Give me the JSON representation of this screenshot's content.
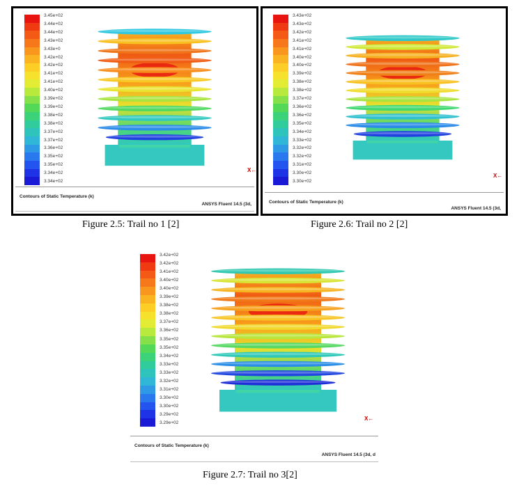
{
  "figures": [
    {
      "caption": "Figure 2.5: Trail no 1 [2]",
      "legend_ticks": [
        "3.45e+02",
        "3.44e+02",
        "3.44e+02",
        "3.43e+02",
        "3.43e+0",
        "3.42e+02",
        "3.42e+02",
        "3.41e+02",
        "3.41e+02",
        "3.40e+02",
        "3.39e+02",
        "3.39e+02",
        "3.38e+02",
        "3.38e+02",
        "3.37e+02",
        "3.37e+02",
        "3.36e+02",
        "3.35e+02",
        "3.35e+02",
        "3.34e+02",
        "3.34e+02"
      ],
      "footer_title": "Contours of Static Temperature (k)",
      "footer_version": "ANSYS Fluent 14.5 (3d,",
      "axis_label": "X"
    },
    {
      "caption": "Figure 2.6: Trail no 2 [2]",
      "legend_ticks": [
        "3.43e+02",
        "3.43e+02",
        "3.42e+02",
        "3.41e+02",
        "3.41e+02",
        "3.40e+02",
        "3.40e+02",
        "3.39e+02",
        "3.38e+02",
        "3.38e+02",
        "3.37e+02",
        "3.36e+02",
        "3.36e+02",
        "3.35e+02",
        "3.34e+02",
        "3.33e+02",
        "3.32e+02",
        "3.32e+02",
        "3.31e+02",
        "3.30e+02",
        "3.30e+02"
      ],
      "footer_title": "Contours of Static Temperature (k)",
      "footer_version": "ANSYS Fluent 14.5 (3d,",
      "axis_label": "X"
    },
    {
      "caption": "Figure 2.7: Trail no 3[2]",
      "legend_ticks": [
        "3.42e+02",
        "3.42e+02",
        "3.41e+02",
        "3.40e+02",
        "3.40e+02",
        "3.39e+02",
        "3.38e+02",
        "3.38e+02",
        "3.37e+02",
        "3.36e+02",
        "3.35e+02",
        "3.35e+02",
        "3.34e+02",
        "3.33e+02",
        "3.33e+02",
        "3.32e+02",
        "3.31e+02",
        "3.30e+02",
        "3.30e+02",
        "3.29e+02",
        "3.29e+02"
      ],
      "footer_title": "Contours of Static Temperature (k)",
      "footer_version": "ANSYS Fluent 14.5 (3d, d",
      "axis_label": "X"
    }
  ],
  "colorbar": [
    "#e8140f",
    "#f03a12",
    "#f45a16",
    "#f6781a",
    "#f8961e",
    "#fab422",
    "#fcce26",
    "#f6e22c",
    "#e2ec34",
    "#b8ea3e",
    "#86e04a",
    "#54d858",
    "#3cd27a",
    "#30cc9c",
    "#2ec4bc",
    "#30b6d6",
    "#2e9ae6",
    "#2a78ee",
    "#2454f0",
    "#1e32e6",
    "#1a1ad6"
  ],
  "fin_colors": {
    "fig0": [
      "#30c8e0",
      "#f8c020",
      "#f07418",
      "#f05c14",
      "#f88c1c",
      "#f8c824",
      "#e8e430",
      "#a8e440",
      "#50d860",
      "#30c8c0",
      "#2c8ce8",
      "#2040e0"
    ],
    "fig1": [
      "#2fc8c8",
      "#d0e838",
      "#f6b020",
      "#f07018",
      "#f08018",
      "#f8c020",
      "#f0dc2c",
      "#a8e440",
      "#40d870",
      "#30c0d0",
      "#2a8ae8",
      "#2040e0"
    ],
    "fig2": [
      "#30c8b0",
      "#d8e434",
      "#f6b420",
      "#f07818",
      "#f6a01c",
      "#f8c424",
      "#f0d82c",
      "#b8e63c",
      "#56d862",
      "#2ec8b8",
      "#2a8ee6",
      "#2248e0",
      "#1e2ed8"
    ]
  }
}
